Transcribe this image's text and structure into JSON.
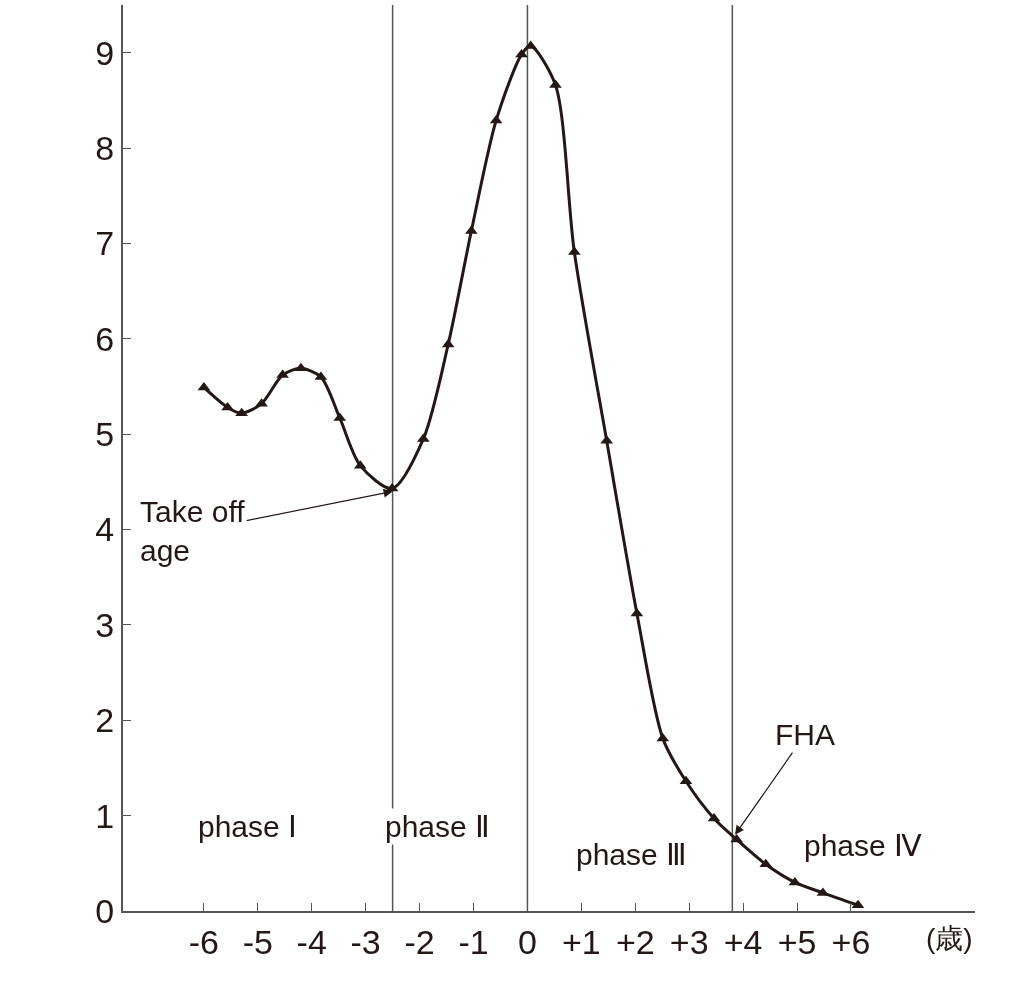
{
  "chart_data": {
    "type": "line",
    "xlabel": "(歳)",
    "x": [
      -6.0,
      -5.56,
      -5.3,
      -4.93,
      -4.54,
      -4.2,
      -3.83,
      -3.48,
      -3.1,
      -2.51,
      -1.93,
      -1.47,
      -1.04,
      -0.58,
      -0.11,
      0.06,
      0.52,
      0.87,
      1.47,
      2.03,
      2.51,
      2.94,
      3.46,
      3.88,
      4.42,
      4.96,
      5.48,
      6.13
    ],
    "series": [
      {
        "color": "#231815",
        "values": [
          5.49,
          5.28,
          5.22,
          5.32,
          5.62,
          5.69,
          5.6,
          5.17,
          4.67,
          4.43,
          4.95,
          5.94,
          7.13,
          8.29,
          8.98,
          9.07,
          8.66,
          6.91,
          4.93,
          3.12,
          1.81,
          1.36,
          0.97,
          0.75,
          0.49,
          0.3,
          0.19,
          0.06
        ]
      }
    ],
    "xlim": [
      -7.5,
      8.3
    ],
    "ylim": [
      0,
      9.5
    ],
    "xticks": [
      -6,
      -5,
      -4,
      -3,
      -2,
      -1,
      0,
      {
        "value": 1,
        "label": "+1"
      },
      {
        "value": 2,
        "label": "+2"
      },
      {
        "value": 3,
        "label": "+3"
      },
      {
        "value": 4,
        "label": "+4"
      },
      {
        "value": 5,
        "label": "+5"
      },
      {
        "value": 6,
        "label": "+6"
      }
    ],
    "yticks": [
      0,
      1,
      2,
      3,
      4,
      5,
      6,
      7,
      8,
      9
    ],
    "ref_lines": [
      {
        "axis": "x",
        "value": -2.5,
        "color": "#555555"
      },
      {
        "axis": "x",
        "value": 0,
        "color": "#555555"
      },
      {
        "axis": "x",
        "value": 3.8,
        "color": "#555555"
      }
    ],
    "annotations": [
      {
        "text": "Take off\nage",
        "x": -2.5,
        "y": 4.4
      },
      {
        "text": "FHA",
        "x": 3.85,
        "y": 0.8
      },
      "phase Ⅰ",
      "phase Ⅱ",
      "phase Ⅲ",
      "phase Ⅳ"
    ],
    "marker": "triangle",
    "grid": false,
    "legend": false
  }
}
